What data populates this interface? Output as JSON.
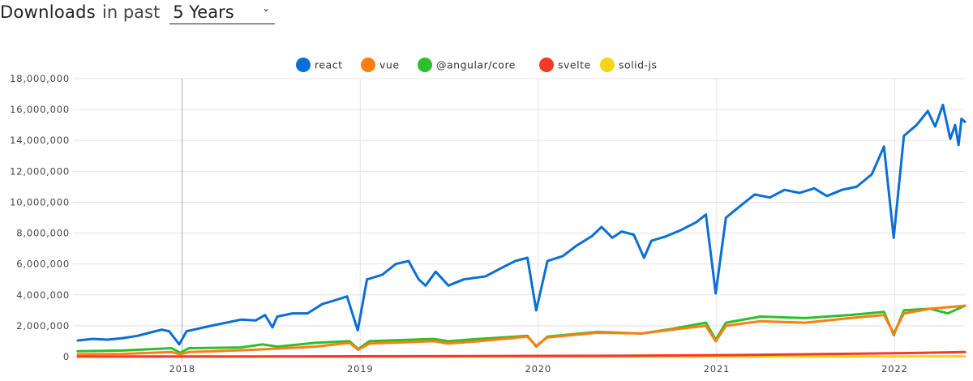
{
  "header": {
    "title": "Downloads",
    "connector": "in past",
    "period": "5 Years"
  },
  "chart_data": {
    "type": "line",
    "title": "",
    "xlabel": "",
    "ylabel": "",
    "ylim": [
      0,
      18000000
    ],
    "xlim": [
      "2017-06-01",
      "2022-05-25"
    ],
    "yticks": [
      0,
      2000000,
      4000000,
      6000000,
      8000000,
      10000000,
      12000000,
      14000000,
      16000000,
      18000000
    ],
    "ytick_labels": [
      "0",
      "2,000,000",
      "4,000,000",
      "6,000,000",
      "8,000,000",
      "10,000,000",
      "12,000,000",
      "14,000,000",
      "16,000,000",
      "18,000,000"
    ],
    "xticks": [
      "2018-01-01",
      "2019-01-01",
      "2020-01-01",
      "2021-01-01",
      "2022-01-01"
    ],
    "xtick_labels": [
      "2018",
      "2019",
      "2020",
      "2021",
      "2022"
    ],
    "grid": true,
    "legend": "top-center",
    "series": [
      {
        "name": "react",
        "color": "#0b6ed6",
        "points": [
          [
            "2017-06-01",
            1050000
          ],
          [
            "2017-07-01",
            1150000
          ],
          [
            "2017-08-01",
            1100000
          ],
          [
            "2017-09-01",
            1200000
          ],
          [
            "2017-10-01",
            1350000
          ],
          [
            "2017-11-01",
            1600000
          ],
          [
            "2017-11-20",
            1750000
          ],
          [
            "2017-12-05",
            1650000
          ],
          [
            "2017-12-26",
            800000
          ],
          [
            "2018-01-10",
            1650000
          ],
          [
            "2018-02-01",
            1800000
          ],
          [
            "2018-03-01",
            2000000
          ],
          [
            "2018-04-01",
            2200000
          ],
          [
            "2018-05-01",
            2400000
          ],
          [
            "2018-06-01",
            2350000
          ],
          [
            "2018-06-20",
            2700000
          ],
          [
            "2018-07-05",
            1900000
          ],
          [
            "2018-07-15",
            2600000
          ],
          [
            "2018-08-15",
            2800000
          ],
          [
            "2018-09-15",
            2800000
          ],
          [
            "2018-10-15",
            3400000
          ],
          [
            "2018-11-15",
            3700000
          ],
          [
            "2018-12-05",
            3900000
          ],
          [
            "2018-12-27",
            1700000
          ],
          [
            "2019-01-15",
            5000000
          ],
          [
            "2019-02-15",
            5300000
          ],
          [
            "2019-03-15",
            6000000
          ],
          [
            "2019-04-10",
            6200000
          ],
          [
            "2019-05-01",
            5000000
          ],
          [
            "2019-05-15",
            4600000
          ],
          [
            "2019-06-05",
            5500000
          ],
          [
            "2019-07-01",
            4600000
          ],
          [
            "2019-08-01",
            5000000
          ],
          [
            "2019-09-15",
            5200000
          ],
          [
            "2019-10-15",
            5700000
          ],
          [
            "2019-11-15",
            6200000
          ],
          [
            "2019-12-10",
            6400000
          ],
          [
            "2019-12-28",
            3000000
          ],
          [
            "2020-01-20",
            6200000
          ],
          [
            "2020-02-20",
            6500000
          ],
          [
            "2020-03-20",
            7200000
          ],
          [
            "2020-04-20",
            7800000
          ],
          [
            "2020-05-10",
            8400000
          ],
          [
            "2020-06-01",
            7700000
          ],
          [
            "2020-06-20",
            8100000
          ],
          [
            "2020-07-15",
            7900000
          ],
          [
            "2020-08-05",
            6400000
          ],
          [
            "2020-08-20",
            7500000
          ],
          [
            "2020-09-20",
            7800000
          ],
          [
            "2020-10-20",
            8200000
          ],
          [
            "2020-11-20",
            8700000
          ],
          [
            "2020-12-10",
            9200000
          ],
          [
            "2020-12-30",
            4100000
          ],
          [
            "2021-01-20",
            9000000
          ],
          [
            "2021-02-20",
            9800000
          ],
          [
            "2021-03-20",
            10500000
          ],
          [
            "2021-04-20",
            10300000
          ],
          [
            "2021-05-20",
            10800000
          ],
          [
            "2021-06-20",
            10600000
          ],
          [
            "2021-07-20",
            10900000
          ],
          [
            "2021-08-15",
            10400000
          ],
          [
            "2021-09-15",
            10800000
          ],
          [
            "2021-10-15",
            11000000
          ],
          [
            "2021-11-15",
            11800000
          ],
          [
            "2021-12-10",
            13600000
          ],
          [
            "2021-12-30",
            7700000
          ],
          [
            "2022-01-20",
            14300000
          ],
          [
            "2022-02-15",
            15000000
          ],
          [
            "2022-03-10",
            15900000
          ],
          [
            "2022-03-25",
            14900000
          ],
          [
            "2022-04-10",
            16300000
          ],
          [
            "2022-04-25",
            14100000
          ],
          [
            "2022-05-05",
            15000000
          ],
          [
            "2022-05-12",
            13700000
          ],
          [
            "2022-05-18",
            15400000
          ],
          [
            "2022-05-25",
            15200000
          ]
        ]
      },
      {
        "name": "vue",
        "color": "#ff7f0e",
        "points": [
          [
            "2017-06-01",
            150000
          ],
          [
            "2017-09-01",
            180000
          ],
          [
            "2017-12-10",
            300000
          ],
          [
            "2017-12-28",
            150000
          ],
          [
            "2018-01-15",
            300000
          ],
          [
            "2018-06-01",
            450000
          ],
          [
            "2018-10-01",
            650000
          ],
          [
            "2018-12-10",
            900000
          ],
          [
            "2018-12-28",
            450000
          ],
          [
            "2019-01-20",
            850000
          ],
          [
            "2019-06-01",
            1000000
          ],
          [
            "2019-07-01",
            850000
          ],
          [
            "2019-09-01",
            1000000
          ],
          [
            "2019-12-10",
            1300000
          ],
          [
            "2019-12-28",
            700000
          ],
          [
            "2020-01-20",
            1250000
          ],
          [
            "2020-05-01",
            1550000
          ],
          [
            "2020-08-01",
            1500000
          ],
          [
            "2020-10-01",
            1750000
          ],
          [
            "2020-12-10",
            2000000
          ],
          [
            "2020-12-30",
            1000000
          ],
          [
            "2021-01-20",
            2000000
          ],
          [
            "2021-04-01",
            2300000
          ],
          [
            "2021-07-01",
            2200000
          ],
          [
            "2021-10-01",
            2500000
          ],
          [
            "2021-12-10",
            2700000
          ],
          [
            "2021-12-30",
            1500000
          ],
          [
            "2022-01-20",
            2800000
          ],
          [
            "2022-03-15",
            3100000
          ],
          [
            "2022-05-25",
            3300000
          ]
        ]
      },
      {
        "name": "@angular/core",
        "color": "#2bc02b",
        "points": [
          [
            "2017-06-01",
            350000
          ],
          [
            "2017-09-01",
            400000
          ],
          [
            "2017-12-10",
            550000
          ],
          [
            "2017-12-28",
            250000
          ],
          [
            "2018-01-15",
            550000
          ],
          [
            "2018-05-01",
            600000
          ],
          [
            "2018-06-15",
            800000
          ],
          [
            "2018-07-15",
            650000
          ],
          [
            "2018-10-01",
            900000
          ],
          [
            "2018-12-10",
            1000000
          ],
          [
            "2018-12-28",
            500000
          ],
          [
            "2019-01-20",
            1000000
          ],
          [
            "2019-06-01",
            1150000
          ],
          [
            "2019-07-01",
            1000000
          ],
          [
            "2019-09-01",
            1150000
          ],
          [
            "2019-12-10",
            1350000
          ],
          [
            "2019-12-28",
            650000
          ],
          [
            "2020-01-20",
            1300000
          ],
          [
            "2020-05-01",
            1600000
          ],
          [
            "2020-08-01",
            1500000
          ],
          [
            "2020-10-01",
            1800000
          ],
          [
            "2020-12-10",
            2200000
          ],
          [
            "2020-12-30",
            1100000
          ],
          [
            "2021-01-20",
            2200000
          ],
          [
            "2021-04-01",
            2600000
          ],
          [
            "2021-07-01",
            2500000
          ],
          [
            "2021-10-01",
            2700000
          ],
          [
            "2021-12-10",
            2900000
          ],
          [
            "2021-12-30",
            1400000
          ],
          [
            "2022-01-20",
            3000000
          ],
          [
            "2022-03-15",
            3100000
          ],
          [
            "2022-04-20",
            2800000
          ],
          [
            "2022-05-25",
            3300000
          ]
        ]
      },
      {
        "name": "svelte",
        "color": "#f5372c",
        "points": [
          [
            "2017-06-01",
            10000
          ],
          [
            "2018-06-01",
            15000
          ],
          [
            "2019-06-01",
            30000
          ],
          [
            "2020-06-01",
            60000
          ],
          [
            "2021-03-01",
            110000
          ],
          [
            "2021-09-01",
            180000
          ],
          [
            "2022-01-01",
            220000
          ],
          [
            "2022-05-25",
            300000
          ]
        ]
      },
      {
        "name": "solid-js",
        "color": "#f7d417",
        "points": [
          [
            "2017-06-01",
            0
          ],
          [
            "2020-06-01",
            1000
          ],
          [
            "2021-06-01",
            5000
          ],
          [
            "2022-05-25",
            20000
          ]
        ]
      }
    ]
  }
}
